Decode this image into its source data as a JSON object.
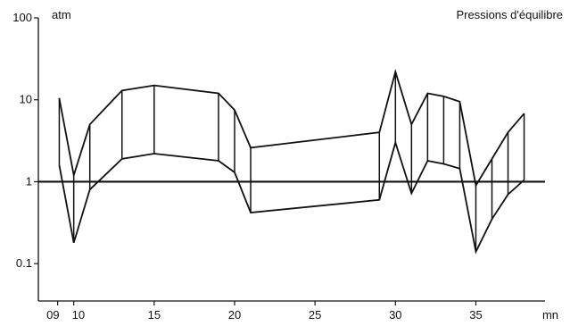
{
  "chart_data": {
    "type": "line",
    "title": "Pressions d'équilibre",
    "xlabel": "mn",
    "ylabel": "atm",
    "y_scale": "log",
    "xlim": [
      7.8,
      39.3
    ],
    "ylim": [
      0.035,
      100
    ],
    "reference_line": 1,
    "x_ticks": [
      {
        "value": 9,
        "label": "09"
      },
      {
        "value": 10,
        "label": "10"
      },
      {
        "value": 15,
        "label": "15"
      },
      {
        "value": 20,
        "label": "20"
      },
      {
        "value": 25,
        "label": "25"
      },
      {
        "value": 30,
        "label": "30"
      },
      {
        "value": 35,
        "label": "35"
      }
    ],
    "y_ticks": [
      {
        "value": 100,
        "label": "100"
      },
      {
        "value": 10,
        "label": "10"
      },
      {
        "value": 1,
        "label": "1"
      },
      {
        "value": 0.1,
        "label": "0.1"
      }
    ],
    "series": [
      {
        "x": [
          9.1,
          10,
          11,
          13,
          15,
          19,
          20,
          21,
          29,
          30,
          31,
          32,
          33,
          34,
          35,
          36,
          37,
          38
        ],
        "values": [
          10.5,
          1.2,
          5,
          13,
          15,
          12,
          7.5,
          2.6,
          4,
          22,
          5,
          12,
          11,
          9.5,
          0.9,
          1.9,
          4,
          6.8
        ]
      },
      {
        "x": [
          9.1,
          10,
          11,
          13,
          15,
          19,
          20,
          21,
          29,
          30,
          31,
          32,
          33,
          34,
          35,
          36,
          37,
          38
        ],
        "values": [
          1.6,
          0.18,
          0.8,
          1.9,
          2.2,
          1.8,
          1.3,
          0.42,
          0.6,
          3,
          0.72,
          1.8,
          1.65,
          1.45,
          0.14,
          0.35,
          0.7,
          1.05
        ]
      }
    ]
  }
}
